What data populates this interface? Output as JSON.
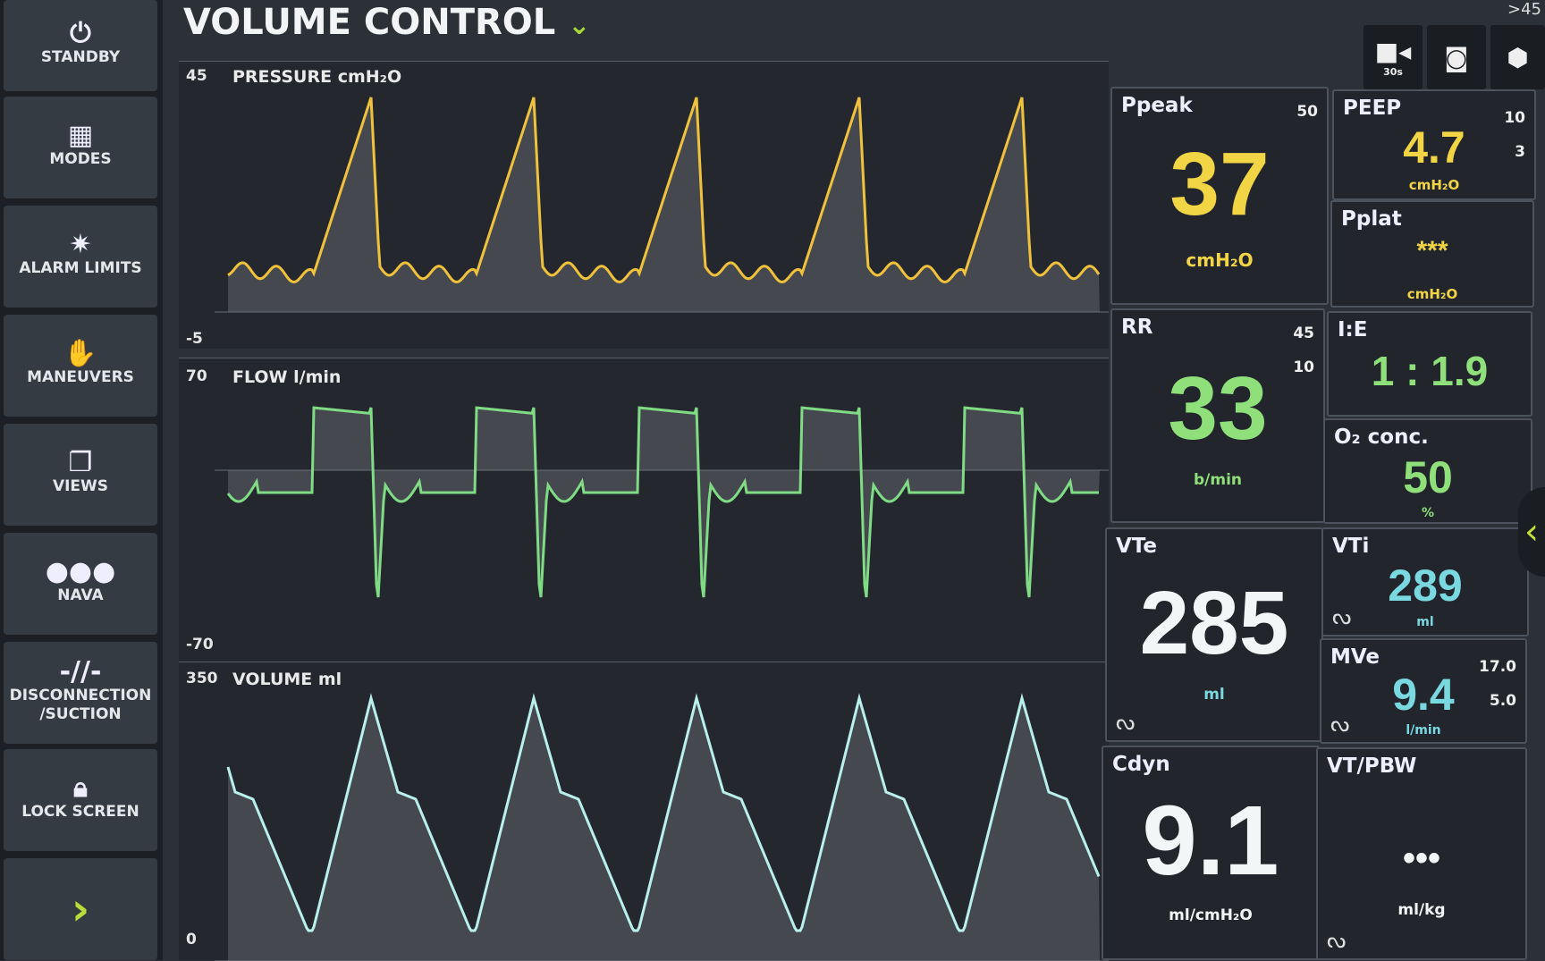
{
  "sidebar": {
    "items": [
      {
        "label": "STANDBY",
        "icon": "power-icon"
      },
      {
        "label": "MODES",
        "icon": "grid-icon"
      },
      {
        "label": "ALARM LIMITS",
        "icon": "alarm-icon"
      },
      {
        "label": "MANEUVERS",
        "icon": "hand-icon"
      },
      {
        "label": "VIEWS",
        "icon": "views-icon"
      },
      {
        "label": "NAVA",
        "icon": "nava-icon"
      },
      {
        "label": "DISCONNECTION /SUCTION",
        "icon": "disconnect-icon"
      },
      {
        "label": "LOCK SCREEN",
        "icon": "lock-icon"
      },
      {
        "label": "",
        "icon": "chevron-right-icon"
      }
    ]
  },
  "header": {
    "title": "VOLUME CONTROL",
    "corner_text": ">45",
    "record_label": "30s"
  },
  "waveforms": {
    "pressure": {
      "label": "PRESSURE cmH₂O",
      "max": "45",
      "min": "-5",
      "color": "#f0c23c"
    },
    "flow": {
      "label": "FLOW l/min",
      "max": "70",
      "min": "-70",
      "color": "#7fdc84"
    },
    "volume": {
      "label": "VOLUME ml",
      "max": "350",
      "min": "0",
      "color": "#b9f0ec"
    }
  },
  "params": {
    "ppeak": {
      "name": "Ppeak",
      "value": "37",
      "unit": "cmH₂O",
      "limit_high": "50"
    },
    "peep": {
      "name": "PEEP",
      "value": "4.7",
      "unit": "cmH₂O",
      "limit_high": "10",
      "limit_low": "3"
    },
    "pplat": {
      "name": "Pplat",
      "value": "***",
      "unit": "cmH₂O"
    },
    "rr": {
      "name": "RR",
      "value": "33",
      "unit": "b/min",
      "limit_high": "45",
      "limit_low": "10"
    },
    "ie": {
      "name": "I:E",
      "value": "1 : 1.9"
    },
    "o2": {
      "name": "O₂ conc.",
      "value": "50",
      "unit": "%"
    },
    "vte": {
      "name": "VTe",
      "value": "285",
      "unit": "ml"
    },
    "vti": {
      "name": "VTi",
      "value": "289",
      "unit": "ml"
    },
    "mve": {
      "name": "MVe",
      "value": "9.4",
      "unit": "l/min",
      "limit_high": "17.0",
      "limit_low": "5.0"
    },
    "cdyn": {
      "name": "Cdyn",
      "value": "9.1",
      "unit": "ml/cmH₂O"
    },
    "vtpbw": {
      "name": "VT/PBW",
      "value": "•••",
      "unit": "ml/kg"
    }
  }
}
